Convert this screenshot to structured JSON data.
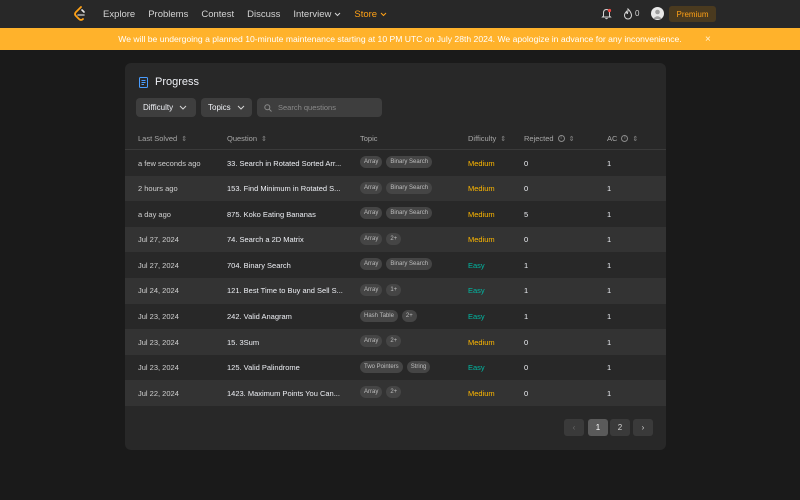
{
  "nav": {
    "items": [
      "Explore",
      "Problems",
      "Contest",
      "Discuss",
      "Interview",
      "Store"
    ],
    "streak": "0",
    "premium": "Premium"
  },
  "banner": {
    "text": "We will be undergoing a planned 10-minute maintenance starting at 10 PM UTC on July 28th 2024. We apologize in advance for any inconvenience.",
    "close": "×"
  },
  "progress": {
    "title": "Progress",
    "difficulty_filter": "Difficulty",
    "topics_filter": "Topics",
    "search_placeholder": "Search questions",
    "columns": [
      "Last Solved",
      "Question",
      "Topic",
      "Difficulty",
      "Rejected",
      "AC"
    ],
    "rows": [
      {
        "last": "a few seconds ago",
        "q": "33. Search in Rotated Sorted Arr...",
        "tags": [
          "Array",
          "Binary Search"
        ],
        "diff": "Medium",
        "rej": "0",
        "ac": "1"
      },
      {
        "last": "2 hours ago",
        "q": "153. Find Minimum in Rotated S...",
        "tags": [
          "Array",
          "Binary Search"
        ],
        "diff": "Medium",
        "rej": "0",
        "ac": "1"
      },
      {
        "last": "a day ago",
        "q": "875. Koko Eating Bananas",
        "tags": [
          "Array",
          "Binary Search"
        ],
        "diff": "Medium",
        "rej": "5",
        "ac": "1"
      },
      {
        "last": "Jul 27, 2024",
        "q": "74. Search a 2D Matrix",
        "tags": [
          "Array",
          "2+"
        ],
        "diff": "Medium",
        "rej": "0",
        "ac": "1"
      },
      {
        "last": "Jul 27, 2024",
        "q": "704. Binary Search",
        "tags": [
          "Array",
          "Binary Search"
        ],
        "diff": "Easy",
        "rej": "1",
        "ac": "1"
      },
      {
        "last": "Jul 24, 2024",
        "q": "121. Best Time to Buy and Sell S...",
        "tags": [
          "Array",
          "1+"
        ],
        "diff": "Easy",
        "rej": "1",
        "ac": "1"
      },
      {
        "last": "Jul 23, 2024",
        "q": "242. Valid Anagram",
        "tags": [
          "Hash Table",
          "2+"
        ],
        "diff": "Easy",
        "rej": "1",
        "ac": "1"
      },
      {
        "last": "Jul 23, 2024",
        "q": "15. 3Sum",
        "tags": [
          "Array",
          "2+"
        ],
        "diff": "Medium",
        "rej": "0",
        "ac": "1"
      },
      {
        "last": "Jul 23, 2024",
        "q": "125. Valid Palindrome",
        "tags": [
          "Two Pointers",
          "String"
        ],
        "diff": "Easy",
        "rej": "0",
        "ac": "1"
      },
      {
        "last": "Jul 22, 2024",
        "q": "1423. Maximum Points You Can...",
        "tags": [
          "Array",
          "2+"
        ],
        "diff": "Medium",
        "rej": "0",
        "ac": "1"
      }
    ],
    "pagination": {
      "prev": "‹",
      "pages": [
        "1",
        "2"
      ],
      "next": "›",
      "current": "1"
    }
  },
  "colors": {
    "accent": "#ffa116",
    "banner": "#ffb22b",
    "medium": "#ffb800",
    "easy": "#00b8a3"
  }
}
